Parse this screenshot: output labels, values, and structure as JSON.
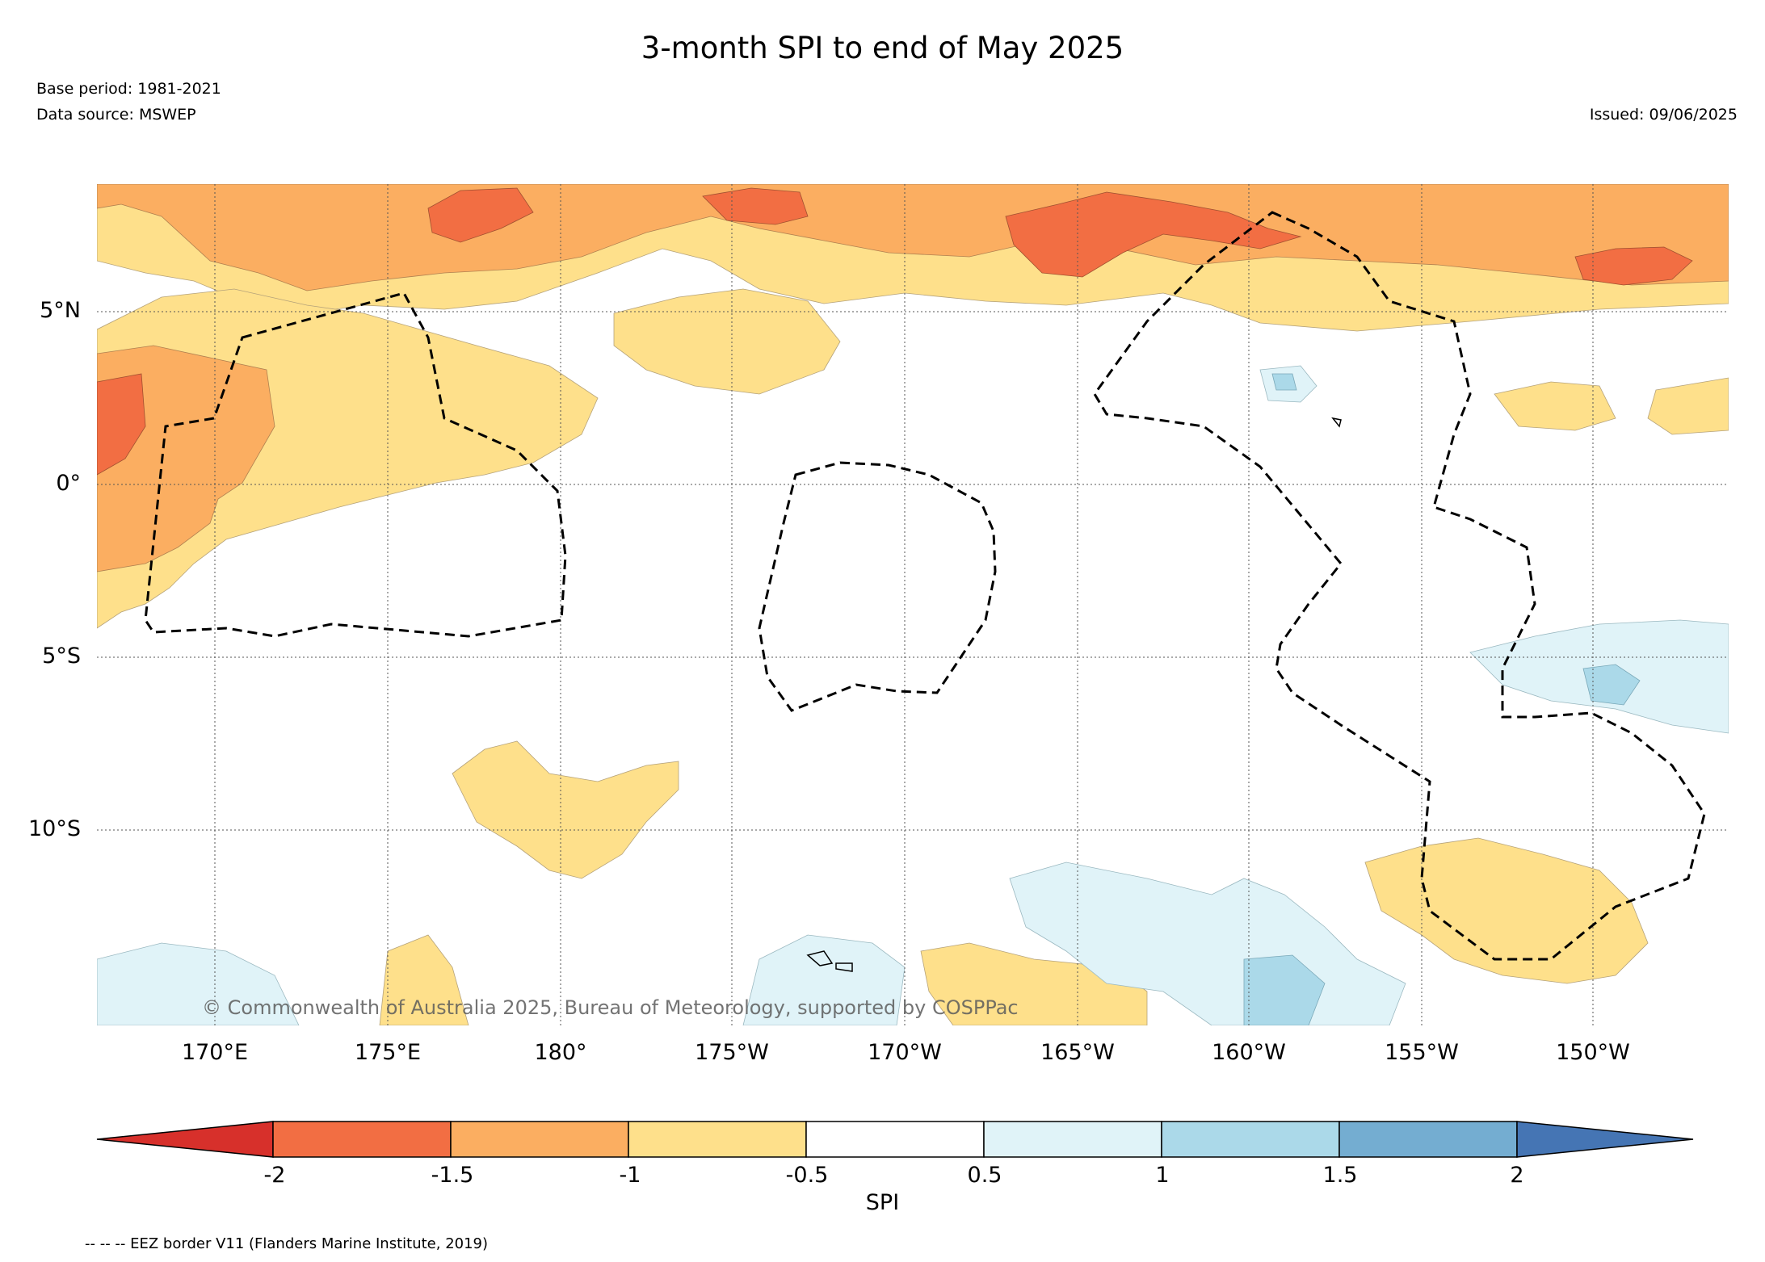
{
  "header": {
    "title": "3-month SPI to end of May 2025",
    "base_period": "Base period: 1981-2021",
    "data_source": "Data source: MSWEP",
    "issued": "Issued: 09/06/2025"
  },
  "map": {
    "lat_labels": [
      "5°N",
      "0°",
      "5°S",
      "10°S"
    ],
    "lon_labels": [
      "170°E",
      "175°E",
      "180°",
      "175°W",
      "170°W",
      "165°W",
      "160°W",
      "155°W",
      "150°W"
    ],
    "copyright": "© Commonwealth of Australia 2025, Bureau of Meteorology, supported by COSPPac"
  },
  "colorbar": {
    "title": "SPI",
    "tick_labels": [
      "-2",
      "-1.5",
      "-1",
      "-0.5",
      "0.5",
      "1",
      "1.5",
      "2"
    ],
    "colors": [
      "#d7302b",
      "#f26e43",
      "#fbae61",
      "#fee08b",
      "#ffffff",
      "#e0f3f8",
      "#abd9e9",
      "#74add1",
      "#4575b4"
    ]
  },
  "footnote": "-- -- -- EEZ border V11 (Flanders Marine Institute, 2019)"
}
